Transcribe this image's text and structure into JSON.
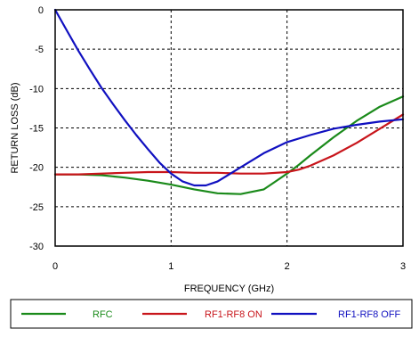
{
  "chart_data": {
    "type": "line",
    "title": "",
    "xlabel": "FREQUENCY (GHz)",
    "ylabel": "RETURN LOSS (dB)",
    "xlim": [
      0,
      3
    ],
    "ylim": [
      -30,
      0
    ],
    "x_ticks": [
      0,
      1,
      2,
      3
    ],
    "y_ticks": [
      0,
      -5,
      -10,
      -15,
      -20,
      -25,
      -30
    ],
    "grid": true,
    "legend_position": "bottom",
    "series": [
      {
        "name": "RFC",
        "color": "#1a8a1a",
        "points": [
          [
            0,
            -20.9
          ],
          [
            0.2,
            -20.9
          ],
          [
            0.4,
            -21.0
          ],
          [
            0.6,
            -21.3
          ],
          [
            0.8,
            -21.7
          ],
          [
            1.0,
            -22.2
          ],
          [
            1.2,
            -22.8
          ],
          [
            1.4,
            -23.3
          ],
          [
            1.6,
            -23.4
          ],
          [
            1.8,
            -22.8
          ],
          [
            1.9,
            -21.8
          ],
          [
            2.0,
            -20.8
          ],
          [
            2.1,
            -19.7
          ],
          [
            2.2,
            -18.5
          ],
          [
            2.4,
            -16.2
          ],
          [
            2.6,
            -14.1
          ],
          [
            2.8,
            -12.3
          ],
          [
            3.0,
            -11.0
          ]
        ]
      },
      {
        "name": "RF1-RF8 ON",
        "color": "#c8151b",
        "points": [
          [
            0,
            -20.9
          ],
          [
            0.2,
            -20.9
          ],
          [
            0.4,
            -20.8
          ],
          [
            0.6,
            -20.7
          ],
          [
            0.8,
            -20.6
          ],
          [
            1.0,
            -20.6
          ],
          [
            1.2,
            -20.7
          ],
          [
            1.4,
            -20.7
          ],
          [
            1.6,
            -20.8
          ],
          [
            1.8,
            -20.8
          ],
          [
            2.0,
            -20.6
          ],
          [
            2.1,
            -20.3
          ],
          [
            2.2,
            -19.8
          ],
          [
            2.4,
            -18.5
          ],
          [
            2.6,
            -16.9
          ],
          [
            2.8,
            -15.1
          ],
          [
            3.0,
            -13.3
          ]
        ]
      },
      {
        "name": "RF1-RF8 OFF",
        "color": "#1010c0",
        "points": [
          [
            0,
            0.0
          ],
          [
            0.1,
            -2.6
          ],
          [
            0.2,
            -5.2
          ],
          [
            0.3,
            -7.6
          ],
          [
            0.4,
            -9.9
          ],
          [
            0.5,
            -12.0
          ],
          [
            0.6,
            -14.0
          ],
          [
            0.7,
            -15.9
          ],
          [
            0.8,
            -17.7
          ],
          [
            0.9,
            -19.4
          ],
          [
            1.0,
            -20.8
          ],
          [
            1.1,
            -21.8
          ],
          [
            1.2,
            -22.3
          ],
          [
            1.3,
            -22.3
          ],
          [
            1.4,
            -21.8
          ],
          [
            1.6,
            -20.0
          ],
          [
            1.8,
            -18.2
          ],
          [
            2.0,
            -16.8
          ],
          [
            2.2,
            -15.9
          ],
          [
            2.4,
            -15.1
          ],
          [
            2.6,
            -14.6
          ],
          [
            2.8,
            -14.2
          ],
          [
            3.0,
            -13.9
          ]
        ]
      }
    ]
  }
}
